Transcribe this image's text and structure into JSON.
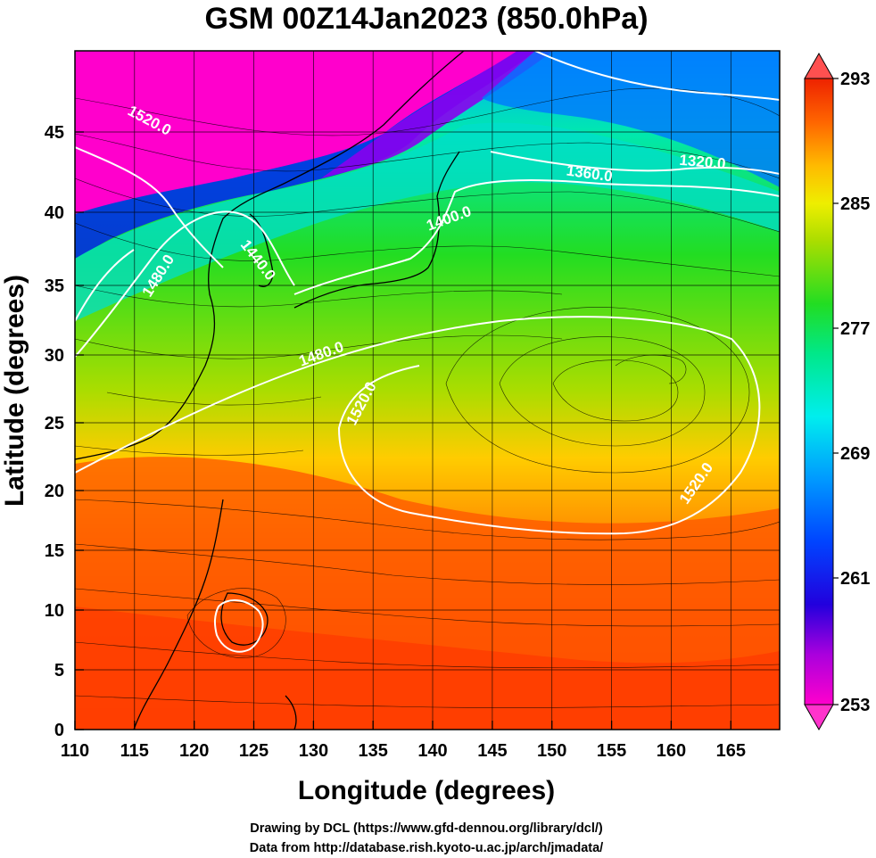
{
  "title": "GSM 00Z14Jan2023 (850.0hPa)",
  "x_axis": {
    "label": "Longitude (degrees)",
    "range": [
      110,
      170
    ],
    "ticks": [
      "110",
      "115",
      "120",
      "125",
      "130",
      "135",
      "140",
      "145",
      "150",
      "155",
      "160",
      "165"
    ]
  },
  "y_axis": {
    "label": "Latitude  (degrees)",
    "range": [
      0,
      50
    ],
    "ticks": [
      "0",
      "5",
      "10",
      "15",
      "20",
      "25",
      "30",
      "35",
      "40",
      "45"
    ]
  },
  "colorbar": {
    "ticks": [
      "293",
      "285",
      "277",
      "269",
      "261",
      "253"
    ],
    "range": [
      253,
      293
    ],
    "colors": [
      "#ff00cc",
      "#8800ee",
      "#0000ee",
      "#0055ff",
      "#00aaff",
      "#00eeee",
      "#00e88a",
      "#22dd22",
      "#88dd00",
      "#ddee00",
      "#ffcc00",
      "#ff8800",
      "#ff4400",
      "#ee2200"
    ]
  },
  "contour_labels": [
    "1520.0",
    "1480.0",
    "1440.0",
    "1400.0",
    "1360.0",
    "1320.0",
    "1480.0",
    "1520.0",
    "1520.0"
  ],
  "credits": {
    "line1": "Drawing by DCL (https://www.gfd-dennou.org/library/dcl/)",
    "line2": "Data from http://database.rish.kyoto-u.ac.jp/arch/jmadata/"
  }
}
